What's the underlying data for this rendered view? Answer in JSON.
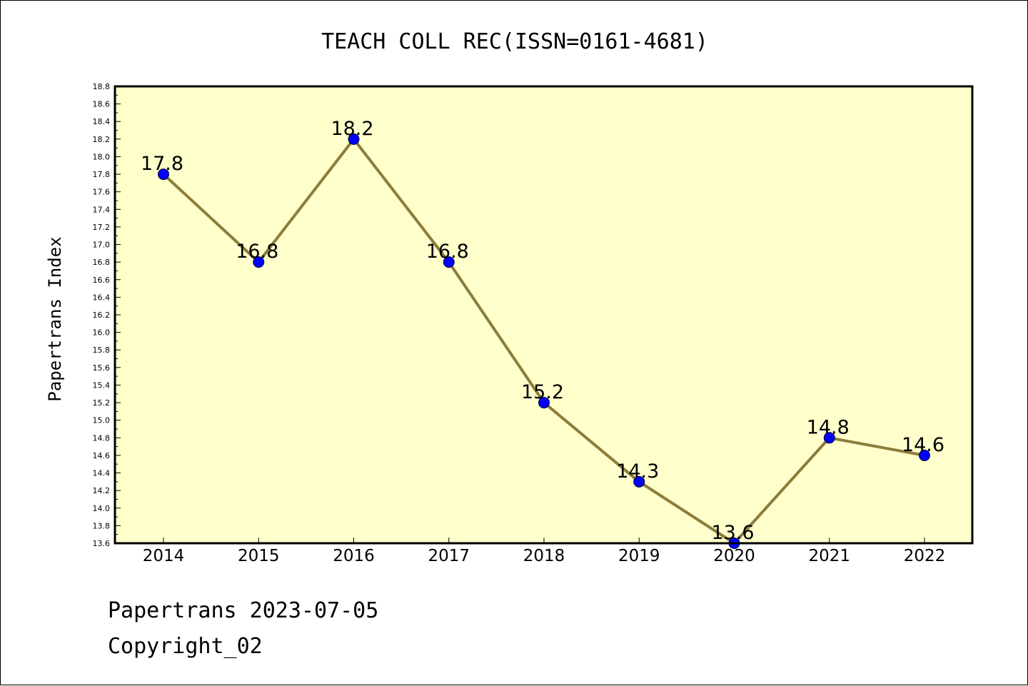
{
  "chart_data": {
    "type": "line",
    "title": "TEACH COLL REC(ISSN=0161-4681)",
    "xlabel": "",
    "ylabel": "Papertrans Index",
    "categories": [
      "2014",
      "2015",
      "2016",
      "2017",
      "2018",
      "2019",
      "2020",
      "2021",
      "2022"
    ],
    "series": [
      {
        "values": [
          17.8,
          16.8,
          18.2,
          16.8,
          15.2,
          14.3,
          13.6,
          14.8,
          14.6
        ],
        "data_labels": [
          "17.8",
          "16.8",
          "18.2",
          "16.8",
          "15.2",
          "14.3",
          "13.6",
          "14.8",
          "14.6"
        ]
      }
    ],
    "ylim": [
      13.6,
      18.8
    ],
    "yticks": [
      "13.6",
      "13.8",
      "14.0",
      "14.2",
      "14.4",
      "14.6",
      "14.8",
      "15.0",
      "15.2",
      "15.4",
      "15.6",
      "15.8",
      "16.0",
      "16.2",
      "16.4",
      "16.6",
      "16.8",
      "17.0",
      "17.2",
      "17.4",
      "17.6",
      "17.8",
      "18.0",
      "18.2",
      "18.4",
      "18.6",
      "18.8"
    ],
    "grid": false,
    "colors": {
      "plot_background": "#ffffcc",
      "line": "#8b7d3a",
      "marker": "#0000ff"
    }
  },
  "footer": {
    "line1": "Papertrans 2023-07-05",
    "line2": "Copyright_02"
  }
}
